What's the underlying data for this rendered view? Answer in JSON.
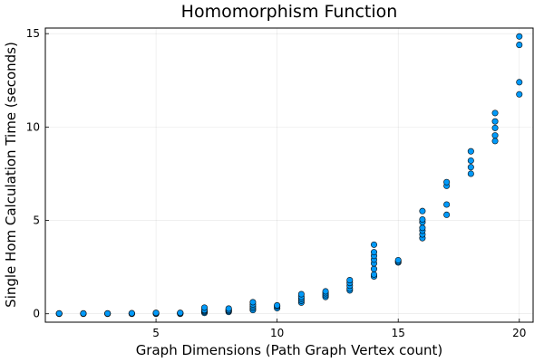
{
  "chart_data": {
    "type": "scatter",
    "title": "Homomorphism Function",
    "xlabel": "Graph Dimensions (Path Graph Vertex count)",
    "ylabel": "Single Hom Calculation Time (seconds)",
    "xlim": [
      0.43,
      20.57
    ],
    "ylim": [
      -0.45,
      15.3
    ],
    "xticks": [
      5,
      10,
      15,
      20
    ],
    "yticks": [
      0,
      5,
      10,
      15
    ],
    "grid": true,
    "legend": "none",
    "marker_color": "#009AFA",
    "series": [
      {
        "points": [
          [
            1,
            0.0
          ],
          [
            1,
            0.01
          ],
          [
            1,
            0.02
          ],
          [
            2,
            0.0
          ],
          [
            2,
            0.01
          ],
          [
            2,
            0.02
          ],
          [
            3,
            0.0
          ],
          [
            3,
            0.01
          ],
          [
            3,
            0.02
          ],
          [
            4,
            0.0
          ],
          [
            4,
            0.01
          ],
          [
            4,
            0.03
          ],
          [
            5,
            0.0
          ],
          [
            5,
            0.02
          ],
          [
            5,
            0.05
          ],
          [
            6,
            0.0
          ],
          [
            6,
            0.03
          ],
          [
            6,
            0.05
          ],
          [
            7,
            0.05
          ],
          [
            7,
            0.1
          ],
          [
            7,
            0.15
          ],
          [
            7,
            0.2
          ],
          [
            7,
            0.33
          ],
          [
            8,
            0.1
          ],
          [
            8,
            0.15
          ],
          [
            8,
            0.2
          ],
          [
            8,
            0.28
          ],
          [
            9,
            0.2
          ],
          [
            9,
            0.3
          ],
          [
            9,
            0.4
          ],
          [
            9,
            0.5
          ],
          [
            9,
            0.62
          ],
          [
            10,
            0.3
          ],
          [
            10,
            0.4
          ],
          [
            10,
            0.45
          ],
          [
            11,
            0.6
          ],
          [
            11,
            0.7
          ],
          [
            11,
            0.8
          ],
          [
            11,
            0.9
          ],
          [
            11,
            1.05
          ],
          [
            12,
            0.9
          ],
          [
            12,
            1.0
          ],
          [
            12,
            1.1
          ],
          [
            12,
            1.2
          ],
          [
            13,
            1.25
          ],
          [
            13,
            1.35
          ],
          [
            13,
            1.5
          ],
          [
            13,
            1.65
          ],
          [
            13,
            1.8
          ],
          [
            14,
            2.0
          ],
          [
            14,
            2.1
          ],
          [
            14,
            2.4
          ],
          [
            14,
            2.7
          ],
          [
            14,
            2.9
          ],
          [
            14,
            3.1
          ],
          [
            14,
            3.3
          ],
          [
            14,
            3.7
          ],
          [
            15,
            2.75
          ],
          [
            15,
            2.8
          ],
          [
            15,
            2.87
          ],
          [
            16,
            4.05
          ],
          [
            16,
            4.25
          ],
          [
            16,
            4.45
          ],
          [
            16,
            4.6
          ],
          [
            16,
            4.9
          ],
          [
            16,
            5.05
          ],
          [
            16,
            5.5
          ],
          [
            17,
            5.3
          ],
          [
            17,
            5.85
          ],
          [
            17,
            6.85
          ],
          [
            17,
            7.05
          ],
          [
            18,
            7.5
          ],
          [
            18,
            7.85
          ],
          [
            18,
            8.2
          ],
          [
            18,
            8.7
          ],
          [
            19,
            9.25
          ],
          [
            19,
            9.55
          ],
          [
            19,
            9.95
          ],
          [
            19,
            10.3
          ],
          [
            19,
            10.75
          ],
          [
            20,
            11.75
          ],
          [
            20,
            12.4
          ],
          [
            20,
            14.4
          ],
          [
            20,
            14.85
          ]
        ]
      }
    ]
  }
}
